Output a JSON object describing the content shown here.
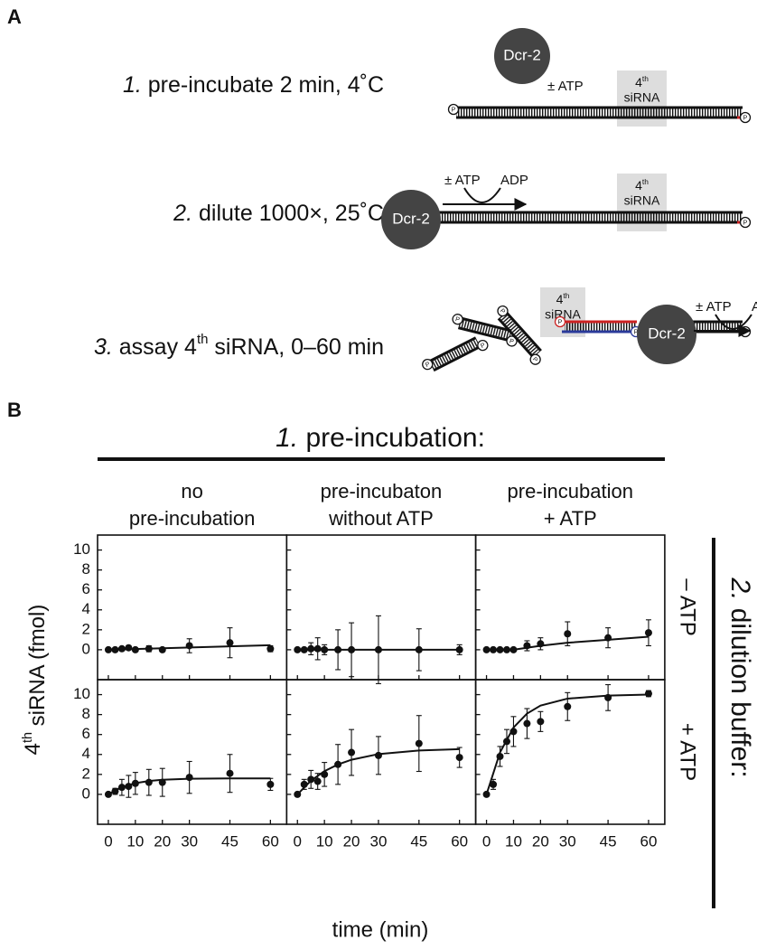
{
  "panel_a": {
    "label": "A",
    "steps": [
      {
        "num": "1.",
        "text": [
          "pre-incubate 2 min, 4˚C"
        ]
      },
      {
        "num": "2.",
        "text": [
          "dilute 1000×, 25˚C"
        ]
      },
      {
        "num": "3.",
        "text": [
          "assay 4",
          "th",
          " siRNA, 0–60 min"
        ]
      }
    ],
    "enzyme": "Dcr-2",
    "atp": "± ATP",
    "adp": "ADP",
    "target": [
      "4",
      "th",
      "siRNA"
    ],
    "phosphate": "P"
  },
  "panel_b": {
    "label": "B",
    "title_num": "1.",
    "title": " pre-incubation:",
    "columns": [
      [
        "no",
        "pre-incubation"
      ],
      [
        "pre-incubaton",
        "without ATP"
      ],
      [
        "pre-incubation",
        "+ ATP"
      ]
    ],
    "rows": [
      "– ATP",
      "+ ATP"
    ],
    "side_num": "2.",
    "side": " dilution buffer:",
    "y_label": [
      "4",
      "th",
      " siRNA (fmol)"
    ],
    "x_label": "time (min)"
  },
  "chart_data": [
    {
      "type": "scatter",
      "xlim": [
        -4,
        66
      ],
      "ylim": [
        -3,
        11.5
      ],
      "xticks": [
        0,
        10,
        20,
        30,
        45,
        60
      ],
      "yticks": [
        0,
        2,
        4,
        6,
        8,
        10
      ],
      "x": [
        0,
        2.5,
        5,
        7.5,
        10,
        15,
        20,
        30,
        45,
        60
      ],
      "values": [
        0,
        0,
        0.1,
        0.2,
        0,
        0.1,
        0,
        0.4,
        0.7,
        0.1
      ],
      "errors": [
        0,
        0,
        0.1,
        0.2,
        0.1,
        0.3,
        0.1,
        0.7,
        1.5,
        0.3
      ],
      "fit_x": [
        0,
        60
      ],
      "fit": [
        0,
        0.45
      ]
    },
    {
      "type": "scatter",
      "xlim": [
        -4,
        66
      ],
      "ylim": [
        -3,
        11.5
      ],
      "xticks": [
        0,
        10,
        20,
        30,
        45,
        60
      ],
      "yticks": [
        0,
        2,
        4,
        6,
        8,
        10
      ],
      "x": [
        0,
        2.5,
        5,
        7.5,
        10,
        15,
        20,
        30,
        45,
        60
      ],
      "values": [
        0,
        0,
        0.1,
        0.1,
        0,
        0,
        0,
        0,
        0,
        0
      ],
      "errors": [
        0,
        0,
        0.6,
        1.1,
        0.5,
        2,
        2.7,
        3.4,
        2.1,
        0.5
      ],
      "fit_x": [
        0,
        60
      ],
      "fit": [
        0,
        0
      ]
    },
    {
      "type": "scatter",
      "xlim": [
        -4,
        66
      ],
      "ylim": [
        -3,
        11.5
      ],
      "xticks": [
        0,
        10,
        20,
        30,
        45,
        60
      ],
      "yticks": [
        0,
        2,
        4,
        6,
        8,
        10
      ],
      "x": [
        0,
        2.5,
        5,
        7.5,
        10,
        15,
        20,
        30,
        45,
        60
      ],
      "values": [
        0,
        0,
        0,
        0,
        0,
        0.4,
        0.6,
        1.6,
        1.2,
        1.7
      ],
      "errors": [
        0,
        0,
        0,
        0,
        0,
        0.5,
        0.6,
        1.2,
        1,
        1.3
      ],
      "fit_x": [
        0,
        10,
        20,
        30,
        45,
        60
      ],
      "fit": [
        0,
        0,
        0.4,
        0.7,
        1,
        1.3
      ]
    },
    {
      "type": "scatter",
      "xlim": [
        -4,
        66
      ],
      "ylim": [
        -3,
        11.5
      ],
      "xticks": [
        0,
        10,
        20,
        30,
        45,
        60
      ],
      "yticks": [
        0,
        2,
        4,
        6,
        8,
        10
      ],
      "x": [
        0,
        2.5,
        5,
        7.5,
        10,
        15,
        20,
        30,
        45,
        60
      ],
      "values": [
        0,
        0.3,
        0.7,
        0.8,
        1.1,
        1.2,
        1.2,
        1.7,
        2.1,
        1
      ],
      "errors": [
        0,
        0.3,
        0.8,
        1.1,
        1.1,
        1.3,
        1.4,
        1.6,
        1.9,
        0.6
      ],
      "fit_x": [
        0,
        5,
        10,
        15,
        20,
        30,
        45,
        60
      ],
      "fit": [
        0,
        0.73,
        1.12,
        1.34,
        1.46,
        1.56,
        1.6,
        1.6
      ]
    },
    {
      "type": "scatter",
      "xlim": [
        -4,
        66
      ],
      "ylim": [
        -3,
        11.5
      ],
      "xticks": [
        0,
        10,
        20,
        30,
        45,
        60
      ],
      "yticks": [
        0,
        2,
        4,
        6,
        8,
        10
      ],
      "x": [
        0,
        2.5,
        5,
        7.5,
        10,
        15,
        20,
        30,
        45,
        60
      ],
      "values": [
        0,
        1,
        1.5,
        1.3,
        2,
        3,
        4.2,
        3.9,
        5.1,
        3.7
      ],
      "errors": [
        0,
        0.5,
        0.9,
        0.8,
        1.2,
        2,
        2.3,
        1.9,
        2.8,
        1
      ],
      "fit_x": [
        0,
        5,
        10,
        15,
        20,
        30,
        45,
        60
      ],
      "fit": [
        0,
        1.37,
        2.33,
        3,
        3.47,
        4.04,
        4.4,
        4.53
      ]
    },
    {
      "type": "scatter",
      "xlim": [
        -4,
        66
      ],
      "ylim": [
        -3,
        11.5
      ],
      "xticks": [
        0,
        10,
        20,
        30,
        45,
        60
      ],
      "yticks": [
        0,
        2,
        4,
        6,
        8,
        10
      ],
      "x": [
        0,
        2.5,
        5,
        7.5,
        10,
        15,
        20,
        30,
        45,
        60
      ],
      "values": [
        0,
        1,
        3.8,
        5.3,
        6.3,
        7.1,
        7.3,
        8.8,
        9.7,
        10.1
      ],
      "errors": [
        0,
        0.5,
        1,
        1.2,
        1.5,
        1.5,
        1,
        1.4,
        1.3,
        0.3
      ],
      "fit_x": [
        0,
        5,
        10,
        15,
        20,
        30,
        45,
        60
      ],
      "fit": [
        0,
        4.2,
        6.7,
        8.1,
        8.9,
        9.6,
        9.9,
        10
      ]
    }
  ]
}
